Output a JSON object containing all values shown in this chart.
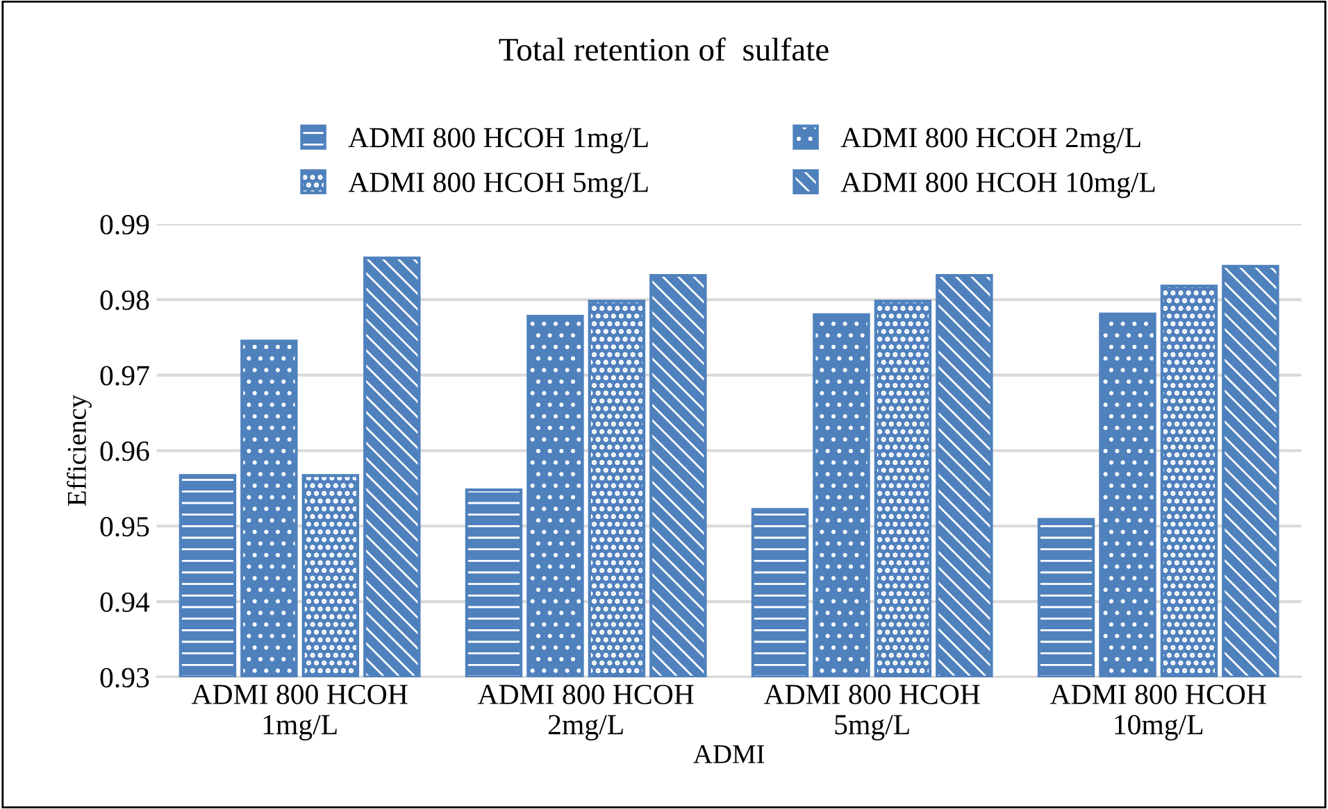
{
  "chart_data": {
    "type": "bar",
    "title": "Total retention of  sulfate",
    "xlabel": "ADMI",
    "ylabel": "Efficiency",
    "categories": [
      "ADMI 800 HCOH\n1mg/L",
      "ADMI 800 HCOH\n2mg/L",
      "ADMI 800 HCOH\n5mg/L",
      "ADMI 800 HCOH\n10mg/L"
    ],
    "series": [
      {
        "name": "ADMI 800 HCOH 1mg/L",
        "color": "#4f81bd",
        "values": [
          0.9567,
          0.9548,
          0.9522,
          0.9509
        ]
      },
      {
        "name": "ADMI 800 HCOH 2mg/L",
        "color": "#4f81bd",
        "values": [
          0.9745,
          0.9778,
          0.978,
          0.9781
        ]
      },
      {
        "name": "ADMI 800 HCOH 5mg/L",
        "color": "#4f81bd",
        "values": [
          0.9567,
          0.9798,
          0.9798,
          0.9818
        ]
      },
      {
        "name": "ADMI 800 HCOH 10mg/L",
        "color": "#4f81bd",
        "values": [
          0.9855,
          0.9832,
          0.9832,
          0.9844
        ]
      }
    ],
    "ylim": [
      0.93,
      0.99
    ],
    "yticks": [
      0.93,
      0.94,
      0.95,
      0.96,
      0.97,
      0.98,
      0.99
    ],
    "grid": "y",
    "legend": "top"
  }
}
